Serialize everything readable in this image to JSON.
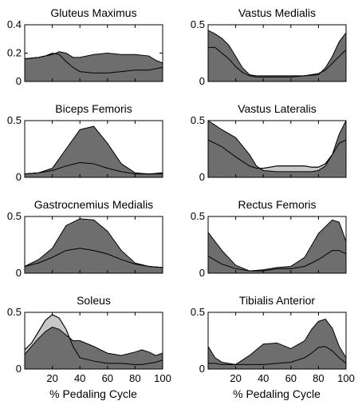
{
  "figure": {
    "xlabel": "% Pedaling Cycle",
    "colors": {
      "dark_fill": "#6e6e6e",
      "light_fill": "#c8c8c8",
      "line": "#000000",
      "background": "#ffffff"
    }
  },
  "chart_data": [
    {
      "type": "area",
      "title": "Gluteus Maximus",
      "xlim": [
        0,
        100
      ],
      "ylim": [
        0,
        0.4
      ],
      "yticks": [
        0,
        0.2,
        0.4
      ],
      "ytick_labels": [
        "0",
        "0.2",
        "0.4"
      ],
      "xticks": [
        20,
        40,
        60,
        80,
        100
      ],
      "xtick_labels": [],
      "x": [
        0,
        10,
        15,
        20,
        25,
        30,
        35,
        40,
        50,
        60,
        70,
        80,
        90,
        95,
        100
      ],
      "series": [
        {
          "values": [
            0.16,
            0.17,
            0.18,
            0.2,
            0.19,
            0.14,
            0.1,
            0.07,
            0.06,
            0.06,
            0.07,
            0.08,
            0.08,
            0.09,
            0.1
          ],
          "color": "#c8c8c8"
        },
        {
          "values": [
            0.16,
            0.17,
            0.18,
            0.19,
            0.21,
            0.2,
            0.17,
            0.17,
            0.19,
            0.2,
            0.19,
            0.19,
            0.18,
            0.15,
            0.13
          ],
          "color": "#6e6e6e"
        }
      ]
    },
    {
      "type": "area",
      "title": "Vastus Medialis",
      "xlim": [
        0,
        100
      ],
      "ylim": [
        0,
        0.5
      ],
      "yticks": [
        0,
        0.5
      ],
      "ytick_labels": [
        "0",
        "0.5"
      ],
      "xticks": [
        20,
        40,
        60,
        80,
        100
      ],
      "xtick_labels": [],
      "x": [
        0,
        5,
        10,
        15,
        20,
        25,
        30,
        35,
        40,
        50,
        60,
        70,
        80,
        85,
        90,
        95,
        100
      ],
      "series": [
        {
          "values": [
            0.3,
            0.3,
            0.25,
            0.2,
            0.13,
            0.08,
            0.05,
            0.04,
            0.04,
            0.04,
            0.04,
            0.05,
            0.07,
            0.1,
            0.16,
            0.22,
            0.28
          ],
          "color": "#c8c8c8"
        },
        {
          "values": [
            0.45,
            0.42,
            0.38,
            0.32,
            0.22,
            0.12,
            0.06,
            0.05,
            0.05,
            0.05,
            0.05,
            0.05,
            0.06,
            0.12,
            0.22,
            0.35,
            0.43
          ],
          "color": "#6e6e6e"
        }
      ]
    },
    {
      "type": "area",
      "title": "Biceps Femoris",
      "xlim": [
        0,
        100
      ],
      "ylim": [
        0,
        0.5
      ],
      "yticks": [
        0,
        0.5
      ],
      "ytick_labels": [
        "0",
        "0.5"
      ],
      "xticks": [
        20,
        40,
        60,
        80,
        100
      ],
      "xtick_labels": [],
      "x": [
        0,
        10,
        20,
        30,
        40,
        50,
        60,
        70,
        80,
        90,
        100
      ],
      "series": [
        {
          "values": [
            0.03,
            0.04,
            0.06,
            0.1,
            0.13,
            0.12,
            0.08,
            0.05,
            0.03,
            0.03,
            0.03
          ],
          "color": "#c8c8c8"
        },
        {
          "values": [
            0.03,
            0.04,
            0.08,
            0.25,
            0.42,
            0.45,
            0.3,
            0.12,
            0.04,
            0.03,
            0.04
          ],
          "color": "#6e6e6e"
        }
      ]
    },
    {
      "type": "area",
      "title": "Vastus Lateralis",
      "xlim": [
        0,
        100
      ],
      "ylim": [
        0,
        0.5
      ],
      "yticks": [
        0,
        0.5
      ],
      "ytick_labels": [
        "0",
        "0.5"
      ],
      "xticks": [
        20,
        40,
        60,
        80,
        100
      ],
      "xtick_labels": [],
      "x": [
        0,
        5,
        10,
        20,
        30,
        35,
        40,
        50,
        60,
        70,
        75,
        80,
        85,
        90,
        95,
        100
      ],
      "series": [
        {
          "values": [
            0.33,
            0.3,
            0.27,
            0.18,
            0.1,
            0.08,
            0.08,
            0.1,
            0.1,
            0.1,
            0.09,
            0.09,
            0.12,
            0.2,
            0.3,
            0.33
          ],
          "color": "#c8c8c8"
        },
        {
          "values": [
            0.5,
            0.46,
            0.42,
            0.35,
            0.2,
            0.1,
            0.06,
            0.05,
            0.05,
            0.05,
            0.05,
            0.06,
            0.1,
            0.2,
            0.38,
            0.5
          ],
          "color": "#6e6e6e"
        }
      ]
    },
    {
      "type": "area",
      "title": "Gastrocnemius Medialis",
      "xlim": [
        0,
        100
      ],
      "ylim": [
        0,
        0.5
      ],
      "yticks": [
        0,
        0.5
      ],
      "ytick_labels": [
        "0",
        "0.5"
      ],
      "xticks": [
        20,
        40,
        60,
        80,
        100
      ],
      "xtick_labels": [],
      "x": [
        0,
        10,
        20,
        30,
        40,
        50,
        60,
        70,
        80,
        90,
        100
      ],
      "series": [
        {
          "values": [
            0.06,
            0.09,
            0.14,
            0.2,
            0.22,
            0.2,
            0.17,
            0.12,
            0.08,
            0.06,
            0.05
          ],
          "color": "#c8c8c8"
        },
        {
          "values": [
            0.06,
            0.12,
            0.22,
            0.42,
            0.48,
            0.47,
            0.37,
            0.2,
            0.09,
            0.06,
            0.05
          ],
          "color": "#6e6e6e"
        }
      ]
    },
    {
      "type": "area",
      "title": "Rectus Femoris",
      "xlim": [
        0,
        100
      ],
      "ylim": [
        0,
        0.5
      ],
      "yticks": [
        0,
        0.5
      ],
      "ytick_labels": [
        "0",
        "0.5"
      ],
      "xticks": [
        20,
        40,
        60,
        80,
        100
      ],
      "xtick_labels": [],
      "x": [
        0,
        10,
        20,
        30,
        40,
        50,
        60,
        70,
        80,
        90,
        95,
        100
      ],
      "series": [
        {
          "values": [
            0.15,
            0.08,
            0.04,
            0.02,
            0.02,
            0.04,
            0.04,
            0.06,
            0.12,
            0.2,
            0.2,
            0.17
          ],
          "color": "#c8c8c8"
        },
        {
          "values": [
            0.36,
            0.2,
            0.07,
            0.02,
            0.03,
            0.05,
            0.06,
            0.14,
            0.35,
            0.47,
            0.45,
            0.28
          ],
          "color": "#6e6e6e"
        }
      ]
    },
    {
      "type": "area",
      "title": "Soleus",
      "xlim": [
        0,
        100
      ],
      "ylim": [
        0,
        0.5
      ],
      "yticks": [
        0,
        0.5
      ],
      "ytick_labels": [
        "0",
        "0.5"
      ],
      "xticks": [
        20,
        40,
        60,
        80,
        100
      ],
      "xtick_labels": [
        "20",
        "40",
        "60",
        "80",
        "100"
      ],
      "x": [
        0,
        5,
        10,
        15,
        20,
        25,
        30,
        35,
        40,
        50,
        60,
        70,
        80,
        85,
        90,
        95,
        100
      ],
      "series": [
        {
          "values": [
            0.17,
            0.23,
            0.33,
            0.43,
            0.48,
            0.45,
            0.35,
            0.2,
            0.1,
            0.07,
            0.05,
            0.05,
            0.04,
            0.04,
            0.05,
            0.06,
            0.08
          ],
          "color": "#c8c8c8"
        },
        {
          "values": [
            0.13,
            0.2,
            0.27,
            0.33,
            0.37,
            0.35,
            0.3,
            0.25,
            0.25,
            0.2,
            0.14,
            0.12,
            0.15,
            0.17,
            0.15,
            0.12,
            0.14
          ],
          "color": "#6e6e6e"
        }
      ]
    },
    {
      "type": "area",
      "title": "Tibialis Anterior",
      "xlim": [
        0,
        100
      ],
      "ylim": [
        0,
        0.5
      ],
      "yticks": [
        0,
        0.5
      ],
      "ytick_labels": [
        "0",
        "0.5"
      ],
      "xticks": [
        20,
        40,
        60,
        80,
        100
      ],
      "xtick_labels": [
        "20",
        "40",
        "60",
        "80",
        "100"
      ],
      "x": [
        0,
        5,
        10,
        20,
        30,
        40,
        50,
        60,
        70,
        75,
        80,
        85,
        90,
        95,
        100
      ],
      "series": [
        {
          "values": [
            0.05,
            0.05,
            0.04,
            0.04,
            0.04,
            0.04,
            0.05,
            0.06,
            0.1,
            0.14,
            0.19,
            0.2,
            0.16,
            0.1,
            0.05
          ],
          "color": "#c8c8c8"
        },
        {
          "values": [
            0.2,
            0.1,
            0.06,
            0.04,
            0.12,
            0.22,
            0.23,
            0.18,
            0.25,
            0.35,
            0.42,
            0.44,
            0.36,
            0.2,
            0.1
          ],
          "color": "#6e6e6e"
        }
      ]
    }
  ]
}
